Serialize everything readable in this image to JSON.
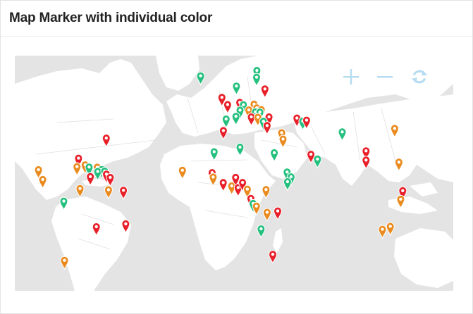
{
  "widget": {
    "title": "Map Marker with individual color"
  },
  "controls": [
    {
      "name": "zoom-in-icon",
      "icon": "plus"
    },
    {
      "name": "zoom-out-icon",
      "icon": "minus"
    },
    {
      "name": "reset-view-icon",
      "icon": "refresh"
    }
  ],
  "colors": {
    "control": "#b5dcf0",
    "ocean": "#e4e4e4",
    "land": "#ffffff",
    "red": "#e8202a",
    "green": "#25c07e",
    "orange": "#ea8b1f"
  },
  "markers": [
    {
      "lon": -22.4,
      "lat": 64.6,
      "color": "green"
    },
    {
      "lon": 16.1,
      "lat": 67.4,
      "color": "green"
    },
    {
      "lon": 15.9,
      "lat": 63.9,
      "color": "green"
    },
    {
      "lon": -7.8,
      "lat": 53.4,
      "color": "red"
    },
    {
      "lon": 2.1,
      "lat": 59.3,
      "color": "green"
    },
    {
      "lon": 21.6,
      "lat": 57.8,
      "color": "red"
    },
    {
      "lon": -3.9,
      "lat": 49.7,
      "color": "red"
    },
    {
      "lon": 4.4,
      "lat": 50.8,
      "color": "red"
    },
    {
      "lon": 6.9,
      "lat": 49.6,
      "color": "green"
    },
    {
      "lon": 14.2,
      "lat": 49.9,
      "color": "orange"
    },
    {
      "lon": 16.0,
      "lat": 48.0,
      "color": "orange"
    },
    {
      "lon": 19.1,
      "lat": 47.1,
      "color": "orange"
    },
    {
      "lon": 4.6,
      "lat": 46.8,
      "color": "green"
    },
    {
      "lon": 10.6,
      "lat": 46.9,
      "color": "orange"
    },
    {
      "lon": 15.1,
      "lat": 45.9,
      "color": "green"
    },
    {
      "lon": 18.2,
      "lat": 45.8,
      "color": "green"
    },
    {
      "lon": 1.8,
      "lat": 43.6,
      "color": "green"
    },
    {
      "lon": 12.3,
      "lat": 43.3,
      "color": "red"
    },
    {
      "lon": 16.8,
      "lat": 43.1,
      "color": "orange"
    },
    {
      "lon": 24.4,
      "lat": 43.3,
      "color": "red"
    },
    {
      "lon": 20.6,
      "lat": 41.0,
      "color": "green"
    },
    {
      "lon": 23.1,
      "lat": 38.8,
      "color": "red"
    },
    {
      "lon": -4.9,
      "lat": 42.2,
      "color": "green"
    },
    {
      "lon": -6.8,
      "lat": 36.2,
      "color": "red"
    },
    {
      "lon": 43.5,
      "lat": 42.7,
      "color": "red"
    },
    {
      "lon": 47.5,
      "lat": 41.1,
      "color": "green"
    },
    {
      "lon": 50.1,
      "lat": 41.6,
      "color": "red"
    },
    {
      "lon": 33.1,
      "lat": 35.1,
      "color": "orange"
    },
    {
      "lon": 34.0,
      "lat": 31.8,
      "color": "orange"
    },
    {
      "lon": 74.5,
      "lat": 35.5,
      "color": "green"
    },
    {
      "lon": 110.4,
      "lat": 37.3,
      "color": "orange"
    },
    {
      "lon": -86.9,
      "lat": 32.3,
      "color": "red"
    },
    {
      "lon": -105.9,
      "lat": 21.9,
      "color": "red"
    },
    {
      "lon": -107.0,
      "lat": 17.5,
      "color": "orange"
    },
    {
      "lon": -101.4,
      "lat": 18.4,
      "color": "orange"
    },
    {
      "lon": -98.7,
      "lat": 17.3,
      "color": "green"
    },
    {
      "lon": -93.1,
      "lat": 17.2,
      "color": "orange"
    },
    {
      "lon": -90.0,
      "lat": 16.0,
      "color": "green"
    },
    {
      "lon": -92.8,
      "lat": 15.0,
      "color": "green"
    },
    {
      "lon": -88.0,
      "lat": 15.2,
      "color": "green"
    },
    {
      "lon": -86.8,
      "lat": 13.6,
      "color": "red"
    },
    {
      "lon": -84.2,
      "lat": 11.9,
      "color": "red"
    },
    {
      "lon": -97.8,
      "lat": 12.3,
      "color": "red"
    },
    {
      "lon": -133.3,
      "lat": 15.9,
      "color": "orange"
    },
    {
      "lon": -130.4,
      "lat": 10.8,
      "color": "orange"
    },
    {
      "lon": -104.9,
      "lat": 6.1,
      "color": "orange"
    },
    {
      "lon": -85.4,
      "lat": 5.5,
      "color": "orange"
    },
    {
      "lon": -75.2,
      "lat": 5.2,
      "color": "red"
    },
    {
      "lon": -116.0,
      "lat": -0.4,
      "color": "green"
    },
    {
      "lon": -93.7,
      "lat": -13.7,
      "color": "red"
    },
    {
      "lon": -73.6,
      "lat": -12.2,
      "color": "red"
    },
    {
      "lon": -115.5,
      "lat": -31.1,
      "color": "orange"
    },
    {
      "lon": -13.1,
      "lat": 25.2,
      "color": "green"
    },
    {
      "lon": 4.6,
      "lat": 27.6,
      "color": "green"
    },
    {
      "lon": -34.8,
      "lat": 15.6,
      "color": "orange"
    },
    {
      "lon": -14.5,
      "lat": 14.4,
      "color": "red"
    },
    {
      "lon": -13.8,
      "lat": 12.1,
      "color": "orange"
    },
    {
      "lon": -6.9,
      "lat": 9.2,
      "color": "red"
    },
    {
      "lon": -1.1,
      "lat": 7.5,
      "color": "orange"
    },
    {
      "lon": 1.6,
      "lat": 11.9,
      "color": "red"
    },
    {
      "lon": 3.3,
      "lat": 6.6,
      "color": "red"
    },
    {
      "lon": 6.3,
      "lat": 9.3,
      "color": "red"
    },
    {
      "lon": 9.6,
      "lat": 5.8,
      "color": "orange"
    },
    {
      "lon": 12.0,
      "lat": 1.0,
      "color": "red"
    },
    {
      "lon": 13.5,
      "lat": -1.6,
      "color": "green"
    },
    {
      "lon": 15.8,
      "lat": -3.0,
      "color": "orange"
    },
    {
      "lon": 22.4,
      "lat": 5.6,
      "color": "orange"
    },
    {
      "lon": 23.1,
      "lat": -6.2,
      "color": "orange"
    },
    {
      "lon": 28.0,
      "lat": 24.7,
      "color": "green"
    },
    {
      "lon": 36.8,
      "lat": 14.7,
      "color": "green"
    },
    {
      "lon": 39.5,
      "lat": 12.2,
      "color": "green"
    },
    {
      "lon": 37.1,
      "lat": 9.7,
      "color": "green"
    },
    {
      "lon": 30.4,
      "lat": -5.5,
      "color": "red"
    },
    {
      "lon": 19.0,
      "lat": -14.8,
      "color": "green"
    },
    {
      "lon": 27.0,
      "lat": -28.0,
      "color": "red"
    },
    {
      "lon": 53.1,
      "lat": 23.9,
      "color": "red"
    },
    {
      "lon": 57.6,
      "lat": 21.4,
      "color": "green"
    },
    {
      "lon": 90.8,
      "lat": 25.7,
      "color": "red"
    },
    {
      "lon": 90.8,
      "lat": 20.9,
      "color": "red"
    },
    {
      "lon": 113.3,
      "lat": 19.8,
      "color": "orange"
    },
    {
      "lon": 115.9,
      "lat": 5.0,
      "color": "red"
    },
    {
      "lon": 114.5,
      "lat": 0.6,
      "color": "orange"
    },
    {
      "lon": 102.0,
      "lat": -15.0,
      "color": "orange"
    },
    {
      "lon": 107.4,
      "lat": -13.5,
      "color": "orange"
    }
  ]
}
